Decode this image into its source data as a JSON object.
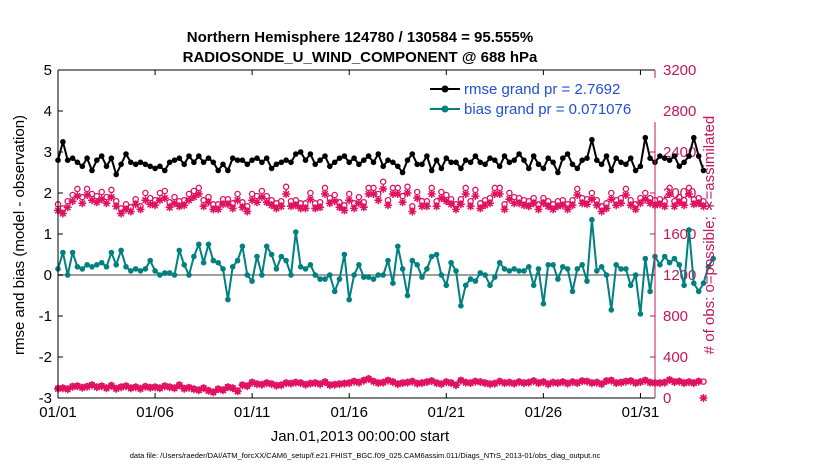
{
  "chart_data": {
    "type": "line",
    "title_line1": "Northern Hemisphere 124780 / 130584 = 95.555%",
    "title_line2": "RADIOSONDE_U_WIND_COMPONENT @ 688 hPa",
    "xlabel": "Jan.01,2013 00:00:00 start",
    "ylabel_left": "rmse and bias (model - observation)",
    "ylabel_right": "# of obs: o=possible; ∗=assimilated",
    "x_range": [
      0,
      30.75
    ],
    "x_ticks": [
      0,
      5,
      10,
      15,
      20,
      25,
      30
    ],
    "x_tick_labels": [
      "01/01",
      "01/06",
      "01/11",
      "01/16",
      "01/21",
      "01/26",
      "01/31"
    ],
    "ylim_left": [
      -3,
      5
    ],
    "y_ticks_left": [
      -3,
      -2,
      -1,
      0,
      1,
      2,
      3,
      4,
      5
    ],
    "ylim_right": [
      0,
      3200
    ],
    "y_ticks_right": [
      0,
      400,
      800,
      1200,
      1600,
      2000,
      2400,
      2800,
      3200
    ],
    "step_days": 0.25,
    "legend": [
      {
        "label": "rmse grand pr = 2.7692"
      },
      {
        "label": "bias grand pr = 0.071076"
      }
    ],
    "series": [
      {
        "name": "rmse",
        "axis": "left",
        "values": [
          2.8,
          3.25,
          2.8,
          2.85,
          2.75,
          2.65,
          2.85,
          2.55,
          2.8,
          2.9,
          2.65,
          2.85,
          2.45,
          2.7,
          2.95,
          2.75,
          2.7,
          2.75,
          2.7,
          2.65,
          2.6,
          2.65,
          2.55,
          2.75,
          2.8,
          2.85,
          2.7,
          2.9,
          2.75,
          2.9,
          2.75,
          2.85,
          2.75,
          2.55,
          2.7,
          2.55,
          2.85,
          2.8,
          2.8,
          2.7,
          2.8,
          2.85,
          2.75,
          2.85,
          2.6,
          2.7,
          2.75,
          2.8,
          2.75,
          2.95,
          3.0,
          2.8,
          2.95,
          2.7,
          2.8,
          2.9,
          2.65,
          2.75,
          2.85,
          2.9,
          2.75,
          2.85,
          2.7,
          2.8,
          2.9,
          2.75,
          2.95,
          2.65,
          2.8,
          2.75,
          2.65,
          2.5,
          2.8,
          2.95,
          2.7,
          2.7,
          2.9,
          2.55,
          2.8,
          2.6,
          2.85,
          2.75,
          2.75,
          2.6,
          2.8,
          2.75,
          2.9,
          2.75,
          2.7,
          2.85,
          2.8,
          2.65,
          2.9,
          2.75,
          2.8,
          2.95,
          2.8,
          2.6,
          2.9,
          2.7,
          2.6,
          2.85,
          2.75,
          2.5,
          2.85,
          2.95,
          2.7,
          2.6,
          2.8,
          2.85,
          3.3,
          2.8,
          2.7,
          2.9,
          2.55,
          2.85,
          2.75,
          2.7,
          2.85,
          2.55,
          2.65,
          3.35,
          2.85,
          2.75,
          2.9,
          2.85,
          2.8,
          2.9,
          2.65,
          2.75,
          2.9,
          3.35,
          2.9,
          2.55
        ],
        "color": "#000000"
      },
      {
        "name": "bias",
        "axis": "left",
        "values": [
          0.15,
          0.55,
          0.0,
          0.55,
          0.2,
          0.15,
          0.25,
          0.2,
          0.25,
          0.3,
          0.2,
          0.55,
          0.25,
          0.6,
          0.2,
          0.1,
          0.15,
          0.1,
          0.15,
          0.35,
          0.1,
          0.0,
          0.05,
          0.05,
          0.0,
          0.6,
          0.25,
          0.0,
          0.45,
          0.75,
          0.3,
          0.75,
          0.35,
          0.3,
          0.15,
          -0.6,
          0.2,
          0.35,
          0.7,
          0.0,
          -0.15,
          0.45,
          0.0,
          0.7,
          0.5,
          0.15,
          0.45,
          0.35,
          0.0,
          1.05,
          0.2,
          0.15,
          0.25,
          0.0,
          -0.1,
          -0.1,
          0.0,
          -0.4,
          -0.1,
          0.5,
          -0.6,
          0.0,
          0.25,
          -0.05,
          -0.05,
          -0.1,
          0.0,
          0.0,
          0.35,
          -0.2,
          0.7,
          0.15,
          -0.5,
          0.35,
          0.25,
          -0.05,
          0.15,
          0.45,
          0.5,
          0.0,
          -0.25,
          0.3,
          0.1,
          -0.75,
          -0.25,
          -0.1,
          -0.15,
          0.05,
          0.0,
          -0.25,
          -0.05,
          0.3,
          0.15,
          0.1,
          0.15,
          0.1,
          0.1,
          0.2,
          -0.25,
          0.15,
          -0.7,
          0.25,
          0.25,
          -0.1,
          0.2,
          0.15,
          -0.4,
          0.15,
          0.25,
          -0.15,
          1.35,
          0.1,
          0.2,
          0.0,
          -0.85,
          0.25,
          0.15,
          0.15,
          -0.25,
          0.0,
          -0.95,
          0.4,
          -0.4,
          0.45,
          0.25,
          0.45,
          0.3,
          0.4,
          0.25,
          -0.25,
          1.1,
          -0.2,
          -0.4,
          -0.2,
          0.2,
          0.4
        ],
        "color": "#008080"
      },
      {
        "name": "obs possible",
        "axis": "right",
        "values": [
          1890,
          1850,
          1920,
          1980,
          2040,
          1960,
          2040,
          1990,
          1970,
          2010,
          1960,
          2030,
          1920,
          1850,
          1890,
          1860,
          1940,
          1870,
          2000,
          1950,
          1930,
          2000,
          2020,
          1910,
          1960,
          1920,
          1930,
          1990,
          2020,
          2050,
          1930,
          1960,
          1890,
          1890,
          1940,
          1940,
          1900,
          1990,
          1910,
          1870,
          1990,
          1970,
          2020,
          1970,
          1930,
          1900,
          1920,
          2060,
          1920,
          1930,
          1900,
          1900,
          2000,
          1900,
          1910,
          2050,
          1950,
          1980,
          1910,
          1880,
          1990,
          1900,
          1960,
          1910,
          2050,
          2050,
          1990,
          2110,
          1930,
          2050,
          2050,
          1970,
          2060,
          1870,
          2010,
          1920,
          1920,
          2050,
          1920,
          2010,
          1980,
          1940,
          1890,
          1940,
          2050,
          1920,
          2030,
          1900,
          1930,
          1950,
          2050,
          2050,
          1890,
          2000,
          1960,
          1950,
          1930,
          1920,
          1950,
          1890,
          1950,
          1920,
          1890,
          1920,
          1930,
          1890,
          1930,
          2040,
          1950,
          1940,
          2000,
          1930,
          1870,
          1900,
          2000,
          1930,
          1950,
          2040,
          1930,
          1890,
          1950,
          2000,
          1950,
          1930,
          1940,
          1920,
          2050,
          1920,
          1960,
          1930,
          2050,
          1940,
          1950,
          1920
        ],
        "color": "#e0115f"
      },
      {
        "name": "obs assimilated",
        "axis": "right",
        "values": [
          1830,
          1800,
          1860,
          1920,
          1970,
          1900,
          1980,
          1930,
          1910,
          1940,
          1900,
          1960,
          1870,
          1800,
          1840,
          1820,
          1890,
          1840,
          1930,
          1890,
          1880,
          1930,
          1950,
          1860,
          1900,
          1870,
          1880,
          1930,
          1960,
          1990,
          1870,
          1910,
          1840,
          1840,
          1890,
          1890,
          1850,
          1930,
          1860,
          1820,
          1930,
          1910,
          1960,
          1910,
          1880,
          1850,
          1870,
          1990,
          1870,
          1880,
          1850,
          1850,
          1940,
          1850,
          1860,
          1990,
          1900,
          1920,
          1860,
          1830,
          1930,
          1850,
          1900,
          1860,
          1990,
          1990,
          1930,
          2040,
          1880,
          1990,
          1990,
          1910,
          2000,
          1820,
          1950,
          1870,
          1870,
          1990,
          1870,
          1950,
          1920,
          1890,
          1840,
          1890,
          1990,
          1870,
          1970,
          1850,
          1880,
          1900,
          1990,
          1990,
          1840,
          1940,
          1900,
          1900,
          1880,
          1870,
          1900,
          1840,
          1900,
          1870,
          1840,
          1870,
          1880,
          1840,
          1880,
          1980,
          1900,
          1890,
          1940,
          1880,
          1820,
          1850,
          1940,
          1880,
          1900,
          1980,
          1880,
          1840,
          1900,
          1940,
          1900,
          1880,
          1890,
          1870,
          1990,
          1870,
          1910,
          1880,
          1990,
          1890,
          1900,
          1870
        ],
        "color": "#e0115f"
      },
      {
        "name": "obs possible low",
        "axis": "right",
        "values": [
          95,
          100,
          90,
          115,
          120,
          105,
          115,
          130,
          110,
          120,
          100,
          125,
          95,
          110,
          120,
          100,
          110,
          95,
          115,
          105,
          110,
          100,
          120,
          110,
          100,
          130,
          95,
          105,
          90,
          80,
          100,
          75,
          60,
          90,
          80,
          110,
          100,
          70,
          130,
          120,
          155,
          140,
          135,
          150,
          140,
          125,
          130,
          150,
          145,
          155,
          150,
          135,
          145,
          150,
          140,
          160,
          130,
          135,
          140,
          145,
          150,
          165,
          155,
          175,
          190,
          165,
          150,
          155,
          175,
          160,
          140,
          150,
          155,
          165,
          145,
          150,
          160,
          170,
          150,
          140,
          160,
          150,
          130,
          175,
          155,
          150,
          165,
          160,
          150,
          140,
          145,
          165,
          150,
          155,
          145,
          160,
          150,
          155,
          170,
          150,
          160,
          140,
          155,
          150,
          160,
          145,
          160,
          150,
          170,
          165,
          150,
          155,
          140,
          170,
          175,
          150,
          155,
          165,
          170,
          150,
          160,
          175,
          155,
          150,
          150,
          155,
          180,
          160,
          165,
          150,
          160,
          150,
          165,
          160
        ],
        "color": "#e0115f"
      },
      {
        "name": "obs assimilated low",
        "axis": "right",
        "values": [
          90,
          95,
          85,
          110,
          115,
          100,
          110,
          125,
          105,
          115,
          95,
          120,
          90,
          105,
          115,
          95,
          105,
          90,
          110,
          100,
          105,
          95,
          115,
          105,
          95,
          125,
          90,
          100,
          85,
          75,
          95,
          70,
          55,
          85,
          75,
          105,
          95,
          65,
          125,
          115,
          150,
          135,
          130,
          145,
          135,
          120,
          125,
          145,
          140,
          150,
          145,
          130,
          140,
          145,
          135,
          155,
          125,
          130,
          135,
          140,
          145,
          160,
          150,
          170,
          185,
          160,
          145,
          150,
          170,
          155,
          135,
          145,
          150,
          160,
          140,
          145,
          155,
          165,
          145,
          135,
          155,
          145,
          125,
          170,
          150,
          145,
          160,
          155,
          145,
          135,
          140,
          160,
          145,
          150,
          140,
          155,
          145,
          150,
          165,
          145,
          155,
          135,
          150,
          145,
          155,
          140,
          155,
          145,
          165,
          160,
          145,
          150,
          135,
          165,
          170,
          145,
          150,
          160,
          165,
          145,
          155,
          170,
          150,
          145,
          145,
          150,
          175,
          155,
          160,
          145,
          155,
          145,
          160,
          0
        ],
        "color": "#e0115f"
      }
    ],
    "zero_line": 0,
    "footnote": "data file: /Users/raeder/DAI/ATM_forcXX/CAM6_setup/f.e21.FHIST_BGC.f09_025.CAM6assim.011/Diags_NTrS_2013-01/obs_diag_output.nc"
  },
  "colors": {
    "rmse": "#000000",
    "bias": "#008080",
    "obs": "#e0115f",
    "right_axis": "#c2185b",
    "legend_text": "#1f4fd6",
    "zero_line": "#a0a0a0"
  }
}
